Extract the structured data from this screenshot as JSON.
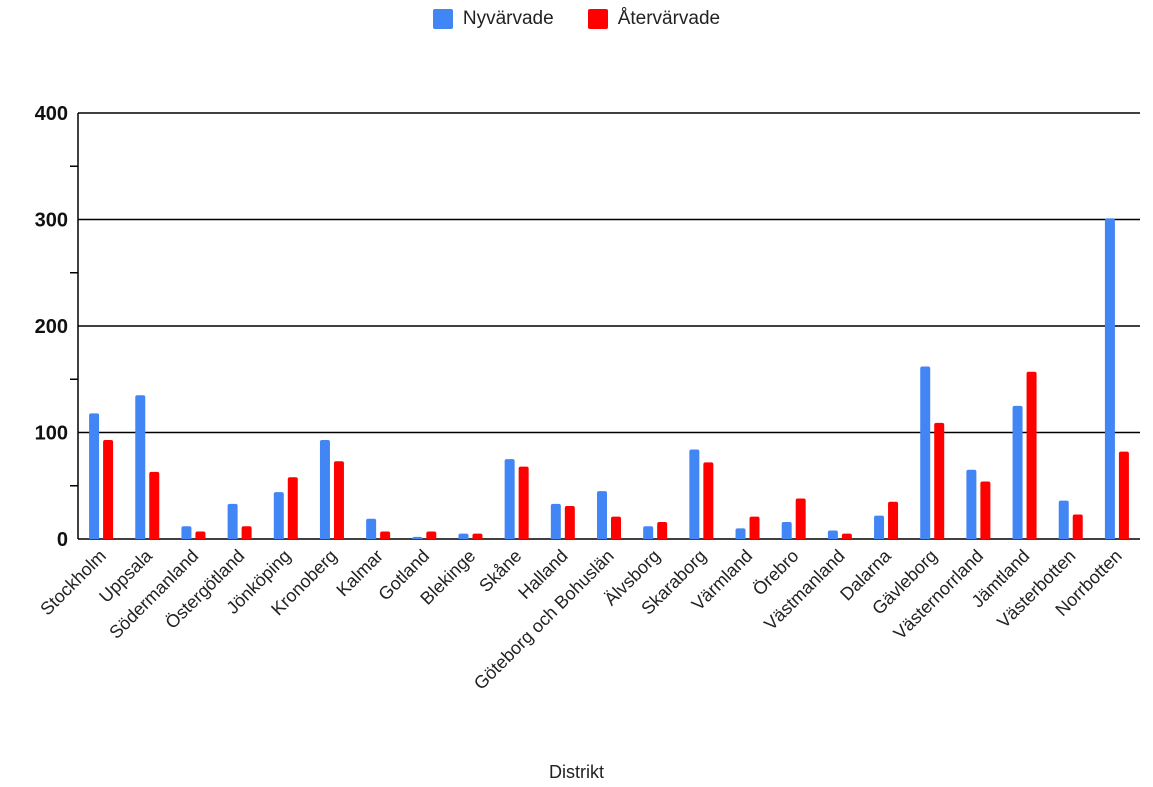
{
  "chart_data": {
    "type": "bar",
    "title": "",
    "xlabel": "Distrikt",
    "ylabel": "",
    "ylim": [
      0,
      400
    ],
    "yticks": [
      0,
      100,
      200,
      300,
      400
    ],
    "grid": true,
    "legend_position": "top-center",
    "categories": [
      "Stockholm",
      "Uppsala",
      "Södermanland",
      "Östergötland",
      "Jönköping",
      "Kronoberg",
      "Kalmar",
      "Gotland",
      "Blekinge",
      "Skåne",
      "Halland",
      "Göteborg och Bohuslän",
      "Älvsborg",
      "Skaraborg",
      "Värmland",
      "Örebro",
      "Västmanland",
      "Dalarna",
      "Gävleborg",
      "Västernorrland",
      "Jämtland",
      "Västerbotten",
      "Norrbotten"
    ],
    "series": [
      {
        "name": "Nyvärvade",
        "color": "#4285f4",
        "values": [
          118,
          135,
          12,
          33,
          44,
          93,
          19,
          2,
          5,
          75,
          33,
          45,
          12,
          84,
          10,
          16,
          8,
          22,
          162,
          65,
          125,
          36,
          301
        ]
      },
      {
        "name": "Återvärvade",
        "color": "#ff0000",
        "values": [
          93,
          63,
          7,
          12,
          58,
          73,
          7,
          7,
          5,
          68,
          31,
          21,
          16,
          72,
          21,
          38,
          5,
          35,
          109,
          54,
          157,
          23,
          82
        ]
      }
    ]
  }
}
